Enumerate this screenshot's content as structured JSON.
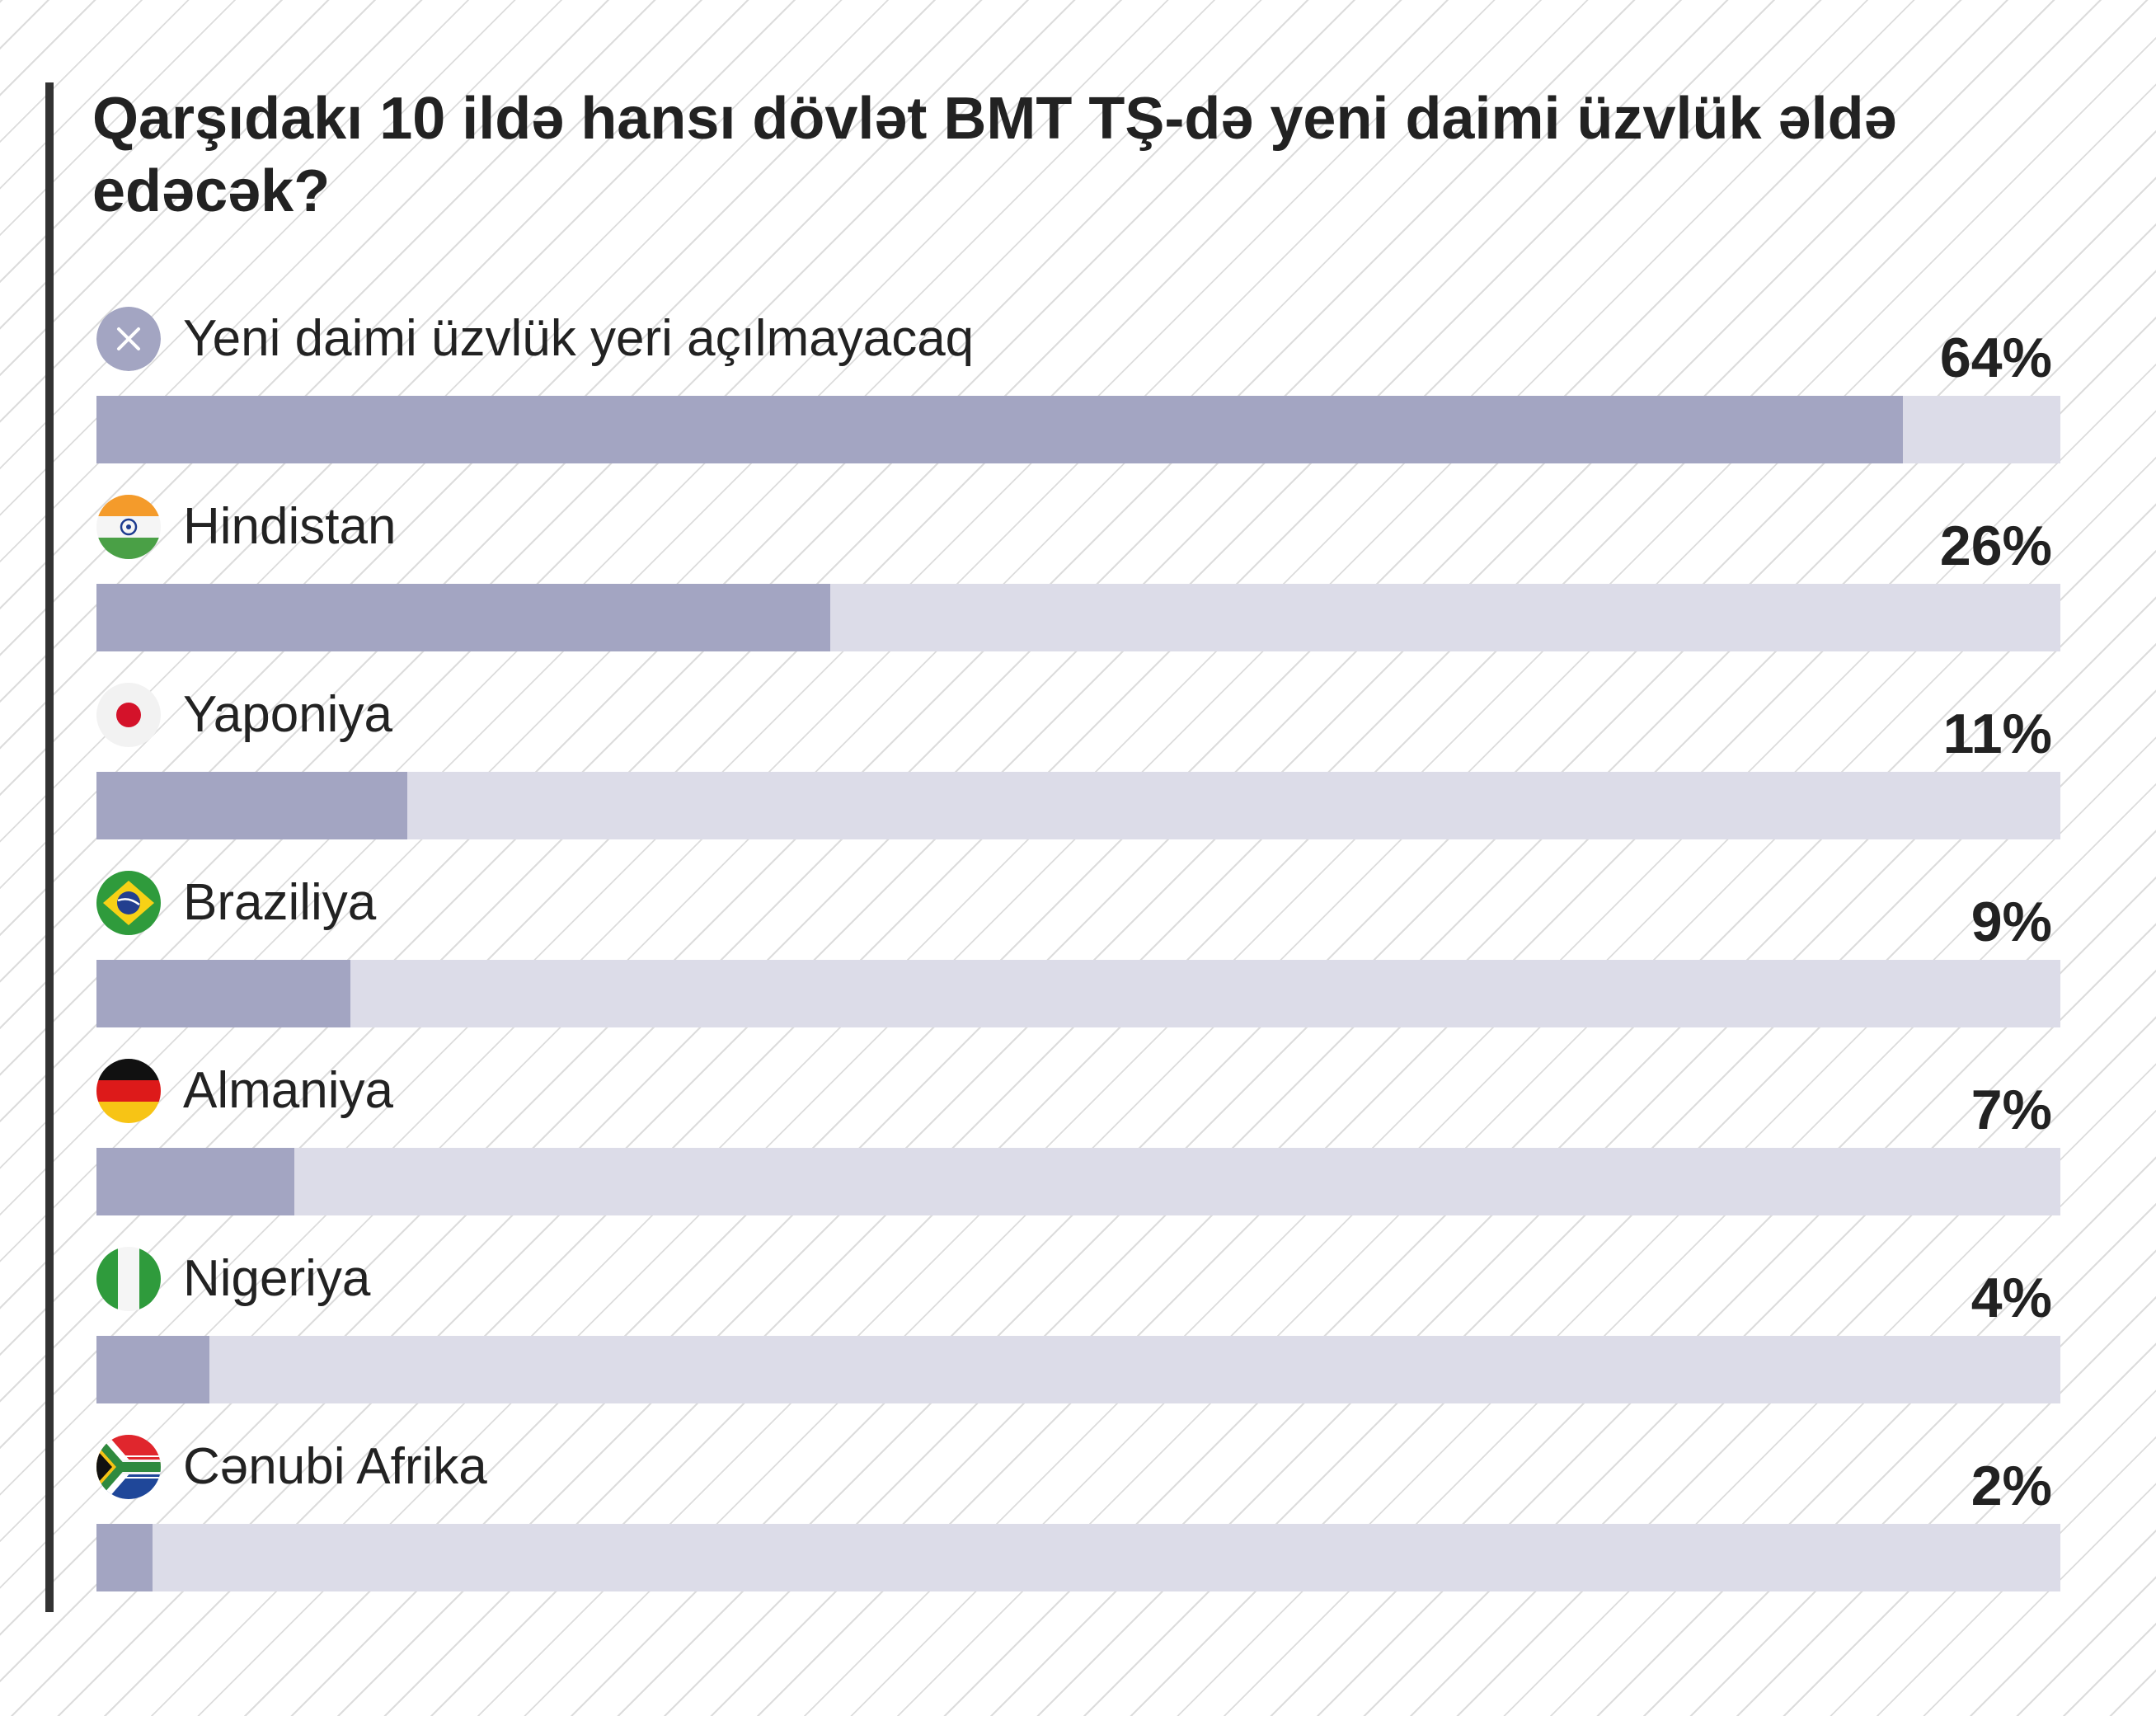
{
  "chart_data": {
    "type": "bar",
    "orientation": "horizontal",
    "title": "Qarşıdakı 10 ildə hansı dövlət BMT TŞ-də yeni daimi üzvlük əldə edəcək?",
    "xlim": [
      0,
      100
    ],
    "grid": false,
    "legend": "none",
    "colors": {
      "fill": "#a3a5c2",
      "track": "#dcdce8",
      "text": "#222222"
    },
    "items": [
      {
        "label": "Yeni daimi üzvlük yeri açılmayacaq",
        "value": 64,
        "value_label": "64%",
        "icon": "x-icon"
      },
      {
        "label": "Hindistan",
        "value": 26,
        "value_label": "26%",
        "icon": "india-flag-icon"
      },
      {
        "label": "Yaponiya",
        "value": 11,
        "value_label": "11%",
        "icon": "japan-flag-icon"
      },
      {
        "label": "Braziliya",
        "value": 9,
        "value_label": "9%",
        "icon": "brazil-flag-icon"
      },
      {
        "label": "Almaniya",
        "value": 7,
        "value_label": "7%",
        "icon": "germany-flag-icon"
      },
      {
        "label": "Nigeriya",
        "value": 4,
        "value_label": "4%",
        "icon": "nigeria-flag-icon"
      },
      {
        "label": "Cənubi Afrika",
        "value": 2,
        "value_label": "2%",
        "icon": "south-africa-flag-icon"
      }
    ]
  }
}
